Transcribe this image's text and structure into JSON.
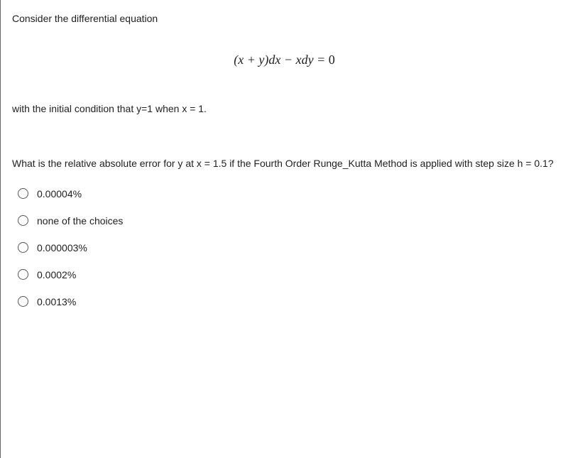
{
  "prompt": "Consider the differential equation",
  "equation_html": "(<i>x</i> + <i>y</i>)<i>dx</i> − <i>xdy</i> = 0",
  "condition": "with the initial condition that y=1 when x = 1.",
  "question": "What is the relative absolute error for y  at x = 1.5 if the Fourth Order Runge_Kutta Method is applied with step size h = 0.1?",
  "choices": [
    {
      "label": "0.00004%"
    },
    {
      "label": "none of the choices"
    },
    {
      "label": "0.000003%"
    },
    {
      "label": "0.0002%"
    },
    {
      "label": "0.0013%"
    }
  ],
  "styles": {
    "font_size_body": 14,
    "font_size_equation": 18,
    "text_color": "#212121",
    "background_color": "#ffffff",
    "border_color": "#666666",
    "radio_border_color": "#555555",
    "choice_gap": 22
  }
}
